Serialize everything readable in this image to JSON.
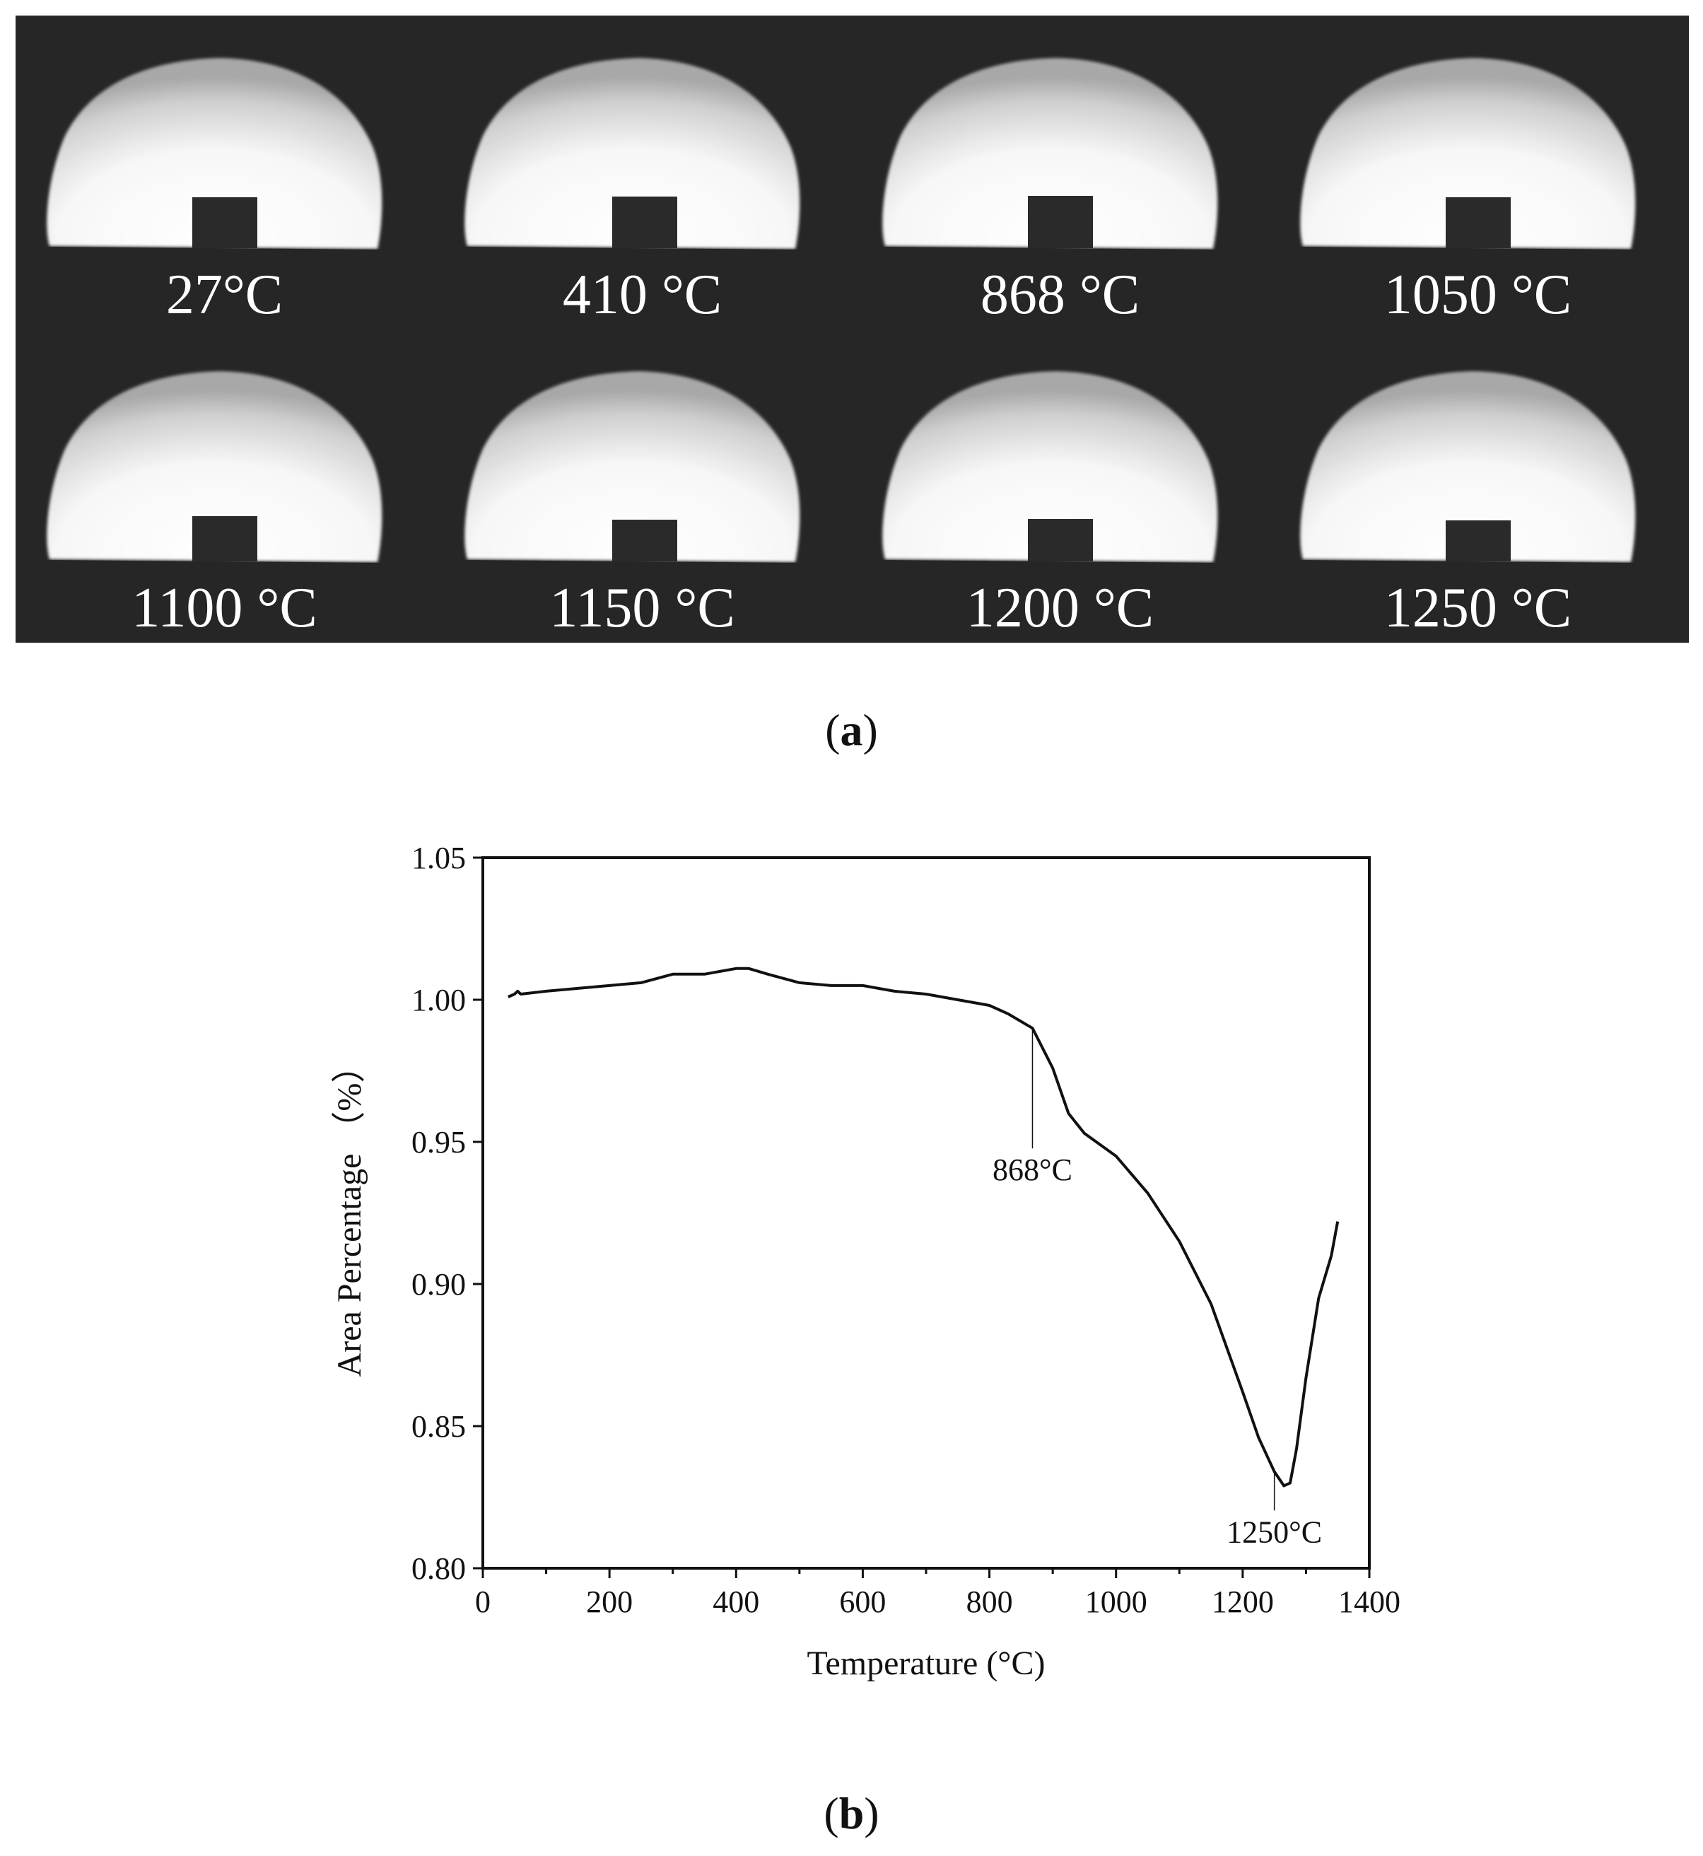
{
  "panel_a": {
    "frames": [
      {
        "label": "27°C"
      },
      {
        "label": "410 °C"
      },
      {
        "label": "868 °C"
      },
      {
        "label": "1050 °C"
      },
      {
        "label": "1100 °C"
      },
      {
        "label": "1150 °C"
      },
      {
        "label": "1200 °C"
      },
      {
        "label": "1250 °C"
      }
    ],
    "caption_open": "(",
    "caption_letter": "a",
    "caption_close": ")"
  },
  "panel_b": {
    "caption_open": "(",
    "caption_letter": "b",
    "caption_close": ")"
  },
  "chart_data": {
    "type": "line",
    "xlabel": "Temperature (°C)",
    "ylabel": "Area Percentage （%）",
    "xlim": [
      0,
      1400
    ],
    "ylim": [
      0.8,
      1.05
    ],
    "xticks": [
      "0",
      "200",
      "400",
      "600",
      "800",
      "1000",
      "1200",
      "1400"
    ],
    "yticks": [
      "0.80",
      "0.85",
      "0.90",
      "0.95",
      "1.00",
      "1.05"
    ],
    "grid": false,
    "series": [
      {
        "x": [
          40,
          50,
          55,
          60,
          100,
          150,
          200,
          250,
          300,
          350,
          400,
          420,
          450,
          500,
          550,
          600,
          650,
          700,
          750,
          800,
          830,
          868,
          900,
          925,
          950,
          1000,
          1050,
          1100,
          1150,
          1200,
          1225,
          1250,
          1265,
          1275,
          1285,
          1300,
          1320,
          1340,
          1350
        ],
        "y": [
          1.001,
          1.002,
          1.003,
          1.002,
          1.003,
          1.004,
          1.005,
          1.006,
          1.009,
          1.009,
          1.011,
          1.011,
          1.009,
          1.006,
          1.005,
          1.005,
          1.003,
          1.002,
          1.0,
          0.998,
          0.995,
          0.99,
          0.976,
          0.96,
          0.953,
          0.945,
          0.932,
          0.915,
          0.893,
          0.862,
          0.846,
          0.834,
          0.829,
          0.83,
          0.842,
          0.867,
          0.895,
          0.91,
          0.922
        ]
      }
    ],
    "annotations": [
      {
        "text": "868°C",
        "x": 868,
        "y": 0.99
      },
      {
        "text": "1250°C",
        "x": 1250,
        "y": 0.834
      }
    ]
  }
}
